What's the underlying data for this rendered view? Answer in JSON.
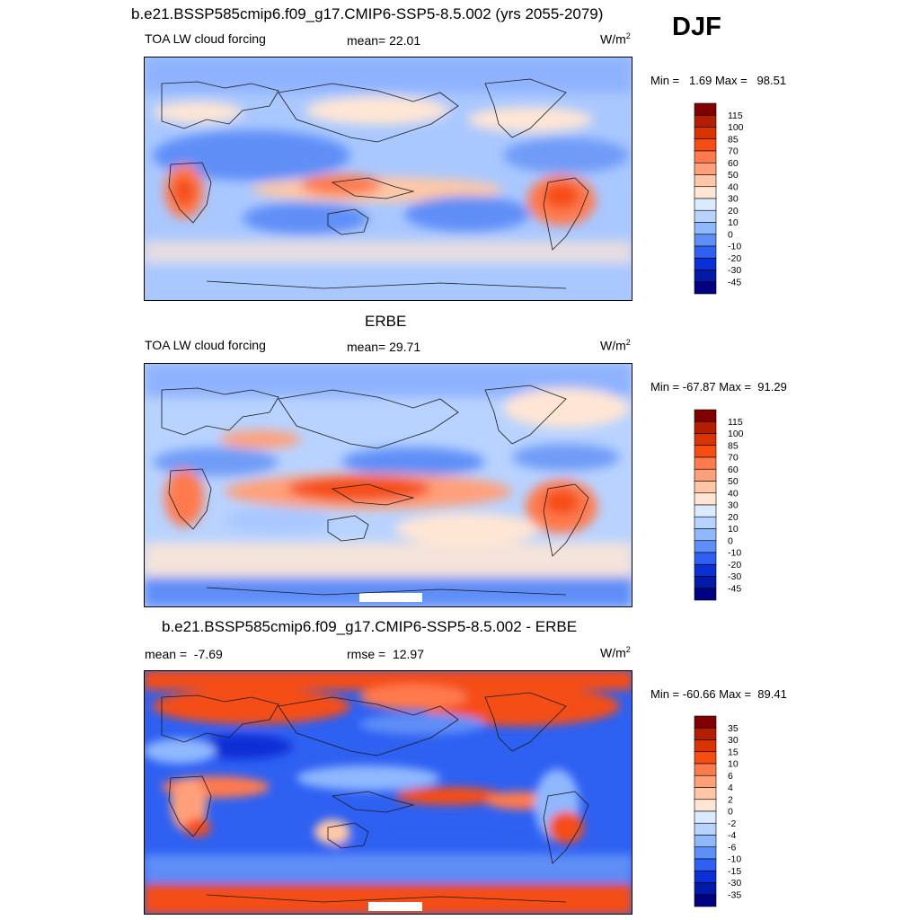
{
  "header": {
    "title": "b.e21.BSSP585cmip6.f09_g17.CMIP6-SSP5-8.5.002 (yrs 2055-2079)",
    "season": "DJF"
  },
  "panels": [
    {
      "id": "model",
      "title": "",
      "variable": "TOA LW cloud forcing",
      "mean_label": "mean=",
      "mean_value": "22.01",
      "rmse_label": "",
      "rmse_value": "",
      "units_base": "W/m",
      "units_exp": "2",
      "min_label": "Min =",
      "min_value": "1.69",
      "max_label": "Max =",
      "max_value": "98.51",
      "colorbar": {
        "labels": [
          "115",
          "100",
          "85",
          "70",
          "60",
          "50",
          "40",
          "30",
          "20",
          "10",
          "0",
          "-10",
          "-20",
          "-30",
          "-45"
        ],
        "colors": [
          "#800000",
          "#b31e00",
          "#d93300",
          "#f54d14",
          "#ff7a4d",
          "#ffa07a",
          "#ffc7a6",
          "#ffe6d4",
          "#dbeaff",
          "#b8d3ff",
          "#8fb8ff",
          "#5e8ef7",
          "#2e60f2",
          "#0a2fd6",
          "#001aa8",
          "#000080"
        ]
      }
    },
    {
      "id": "obs",
      "title": "ERBE",
      "variable": "TOA LW cloud forcing",
      "mean_label": "mean=",
      "mean_value": "29.71",
      "rmse_label": "",
      "rmse_value": "",
      "units_base": "W/m",
      "units_exp": "2",
      "min_label": "Min =",
      "min_value": "-67.87",
      "max_label": "Max =",
      "max_value": "91.29",
      "colorbar": {
        "labels": [
          "115",
          "100",
          "85",
          "70",
          "60",
          "50",
          "40",
          "30",
          "20",
          "10",
          "0",
          "-10",
          "-20",
          "-30",
          "-45"
        ],
        "colors": [
          "#800000",
          "#b31e00",
          "#d93300",
          "#f54d14",
          "#ff7a4d",
          "#ffa07a",
          "#ffc7a6",
          "#ffe6d4",
          "#dbeaff",
          "#b8d3ff",
          "#8fb8ff",
          "#5e8ef7",
          "#2e60f2",
          "#0a2fd6",
          "#001aa8",
          "#000080"
        ]
      }
    },
    {
      "id": "diff",
      "title": "b.e21.BSSP585cmip6.f09_g17.CMIP6-SSP5-8.5.002 - ERBE",
      "variable": "",
      "mean_label": "mean =",
      "mean_value": "-7.69",
      "rmse_label": "rmse =",
      "rmse_value": "12.97",
      "units_base": "W/m",
      "units_exp": "2",
      "min_label": "Min =",
      "min_value": "-60.66",
      "max_label": "Max =",
      "max_value": "89.41",
      "colorbar": {
        "labels": [
          "35",
          "30",
          "15",
          "10",
          "6",
          "4",
          "2",
          "0",
          "-2",
          "-4",
          "-6",
          "-10",
          "-15",
          "-30",
          "-35"
        ],
        "colors": [
          "#800000",
          "#b31e00",
          "#d93300",
          "#f54d14",
          "#ff7a4d",
          "#ffa07a",
          "#ffc7a6",
          "#ffe6d4",
          "#dbeaff",
          "#b8d3ff",
          "#8fb8ff",
          "#5e8ef7",
          "#2e60f2",
          "#0a2fd6",
          "#001aa8",
          "#000080"
        ]
      }
    }
  ]
}
